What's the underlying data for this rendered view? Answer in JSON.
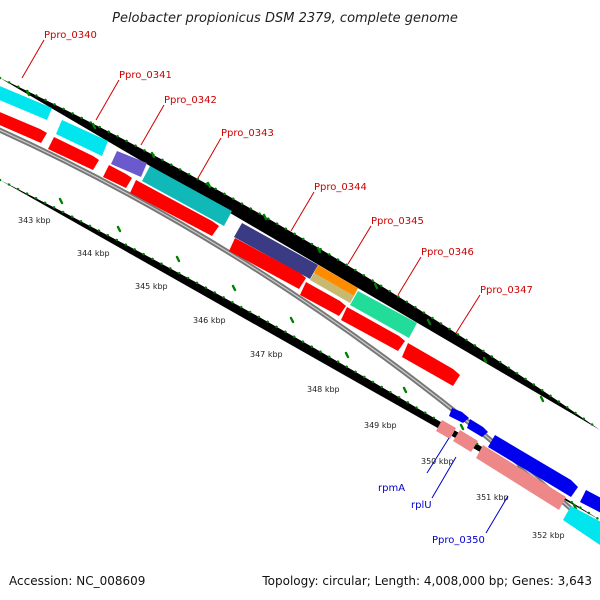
{
  "title": "Pelobacter propionicus DSM 2379, complete genome",
  "footer": {
    "accession": "Accession: NC_008609",
    "summary": "Topology: circular; Length: 4,008,000 bp; Genes: 3,643"
  },
  "kbp_labels": [
    "343 kbp",
    "344 kbp",
    "345 kbp",
    "346 kbp",
    "347 kbp",
    "348 kbp",
    "349 kbp",
    "350 kbp",
    "351 kbp",
    "352 kbp"
  ],
  "genes_red": [
    "Ppro_0340",
    "Ppro_0341",
    "Ppro_0342",
    "Ppro_0343",
    "Ppro_0344",
    "Ppro_0345",
    "Ppro_0346",
    "Ppro_0347"
  ],
  "genes_blue": [
    "rpmA",
    "rplU",
    "Ppro_0350"
  ],
  "colors": {
    "cds_red": "#ff0000",
    "cds_pink": "#ee8888",
    "cds_blue": "#0000ee",
    "cog_cyan": "#00e5ee",
    "cog_teal": "#11b8b8",
    "cog_purple": "#6a5acd",
    "cog_navy": "#3b3b85",
    "cog_orange": "#ff8c00",
    "cog_khaki": "#c8b870",
    "cog_green": "#22dd99",
    "backbone": "#888888",
    "tick": "#008000"
  }
}
